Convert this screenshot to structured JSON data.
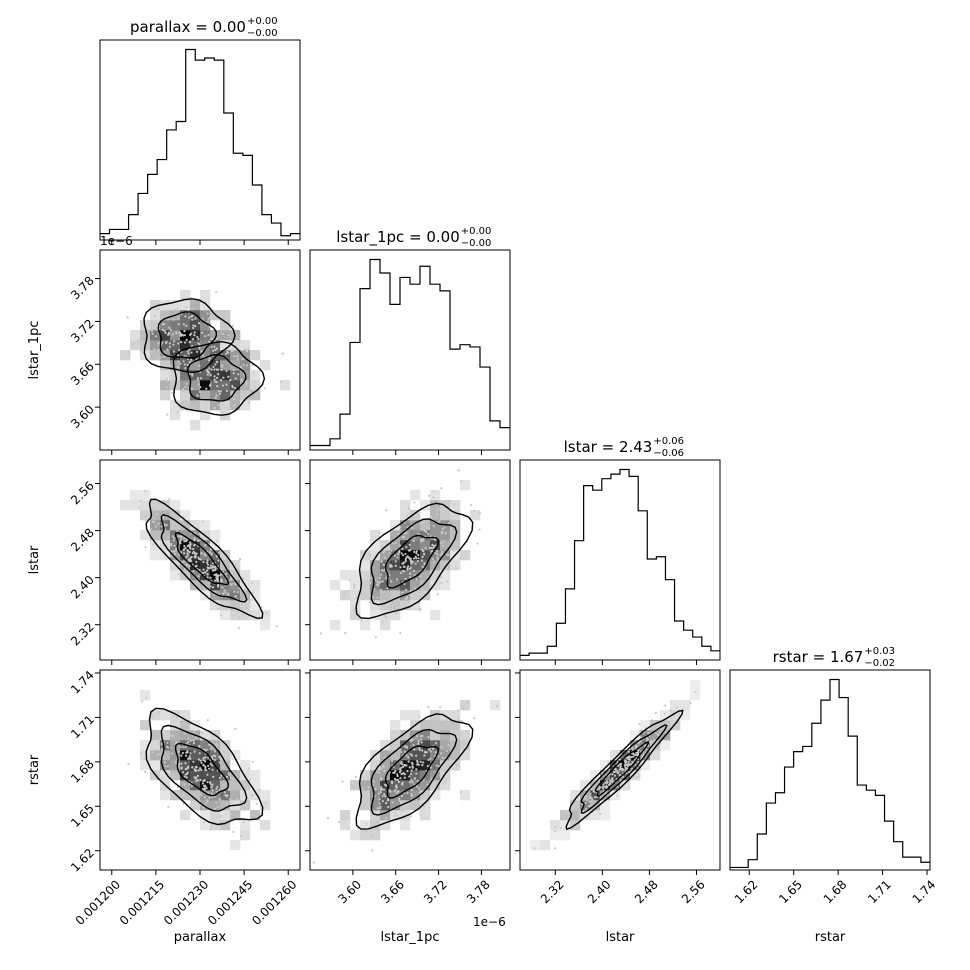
{
  "chart_data": {
    "type": "corner",
    "parameters": [
      "parallax",
      "lstar_1pc",
      "lstar",
      "rstar"
    ],
    "axis_labels": [
      "parallax",
      "lstar_1pc",
      "lstar",
      "rstar"
    ],
    "ranges": [
      [
        0.001196,
        0.001264
      ],
      [
        3.54e-06,
        3.82e-06
      ],
      [
        2.26,
        2.6
      ],
      [
        1.607,
        1.742
      ]
    ],
    "ticks": [
      {
        "values": [
          0.0012,
          0.001215,
          0.00123,
          0.001245,
          0.00126
        ],
        "labels": [
          "0.001200",
          "0.001215",
          "0.001230",
          "0.001245",
          "0.001260"
        ]
      },
      {
        "values": [
          3.6e-06,
          3.66e-06,
          3.72e-06,
          3.78e-06
        ],
        "labels": [
          "3.60",
          "3.66",
          "3.72",
          "3.78"
        ]
      },
      {
        "values": [
          2.32,
          2.4,
          2.48,
          2.56
        ],
        "labels": [
          "2.32",
          "2.40",
          "2.48",
          "2.56"
        ]
      },
      {
        "values": [
          1.62,
          1.65,
          1.68,
          1.71,
          1.74
        ],
        "labels": [
          "1.62",
          "1.65",
          "1.68",
          "1.71",
          "1.74"
        ]
      }
    ],
    "offset_texts": {
      "lstar_1pc_y": "1e−6",
      "lstar_1pc_x": "1e−6"
    },
    "titles": [
      {
        "param": "parallax",
        "text": "parallax = 0.00",
        "plus": "+0.00",
        "minus": "−0.00"
      },
      {
        "param": "lstar_1pc",
        "text": "lstar_1pc = 0.00",
        "plus": "+0.00",
        "minus": "−0.00"
      },
      {
        "param": "lstar",
        "text": "lstar = 2.43",
        "plus": "+0.06",
        "minus": "−0.06"
      },
      {
        "param": "rstar",
        "text": "rstar = 1.67",
        "plus": "+0.03",
        "minus": "−0.02"
      }
    ],
    "histograms": [
      {
        "param": "parallax",
        "counts": [
          3,
          5,
          5,
          12,
          22,
          31,
          38,
          52,
          56,
          90,
          85,
          86,
          85,
          60,
          41,
          40,
          26,
          12,
          8,
          2,
          3
        ]
      },
      {
        "param": "lstar_1pc",
        "counts": [
          2,
          2,
          5,
          16,
          48,
          72,
          85,
          79,
          65,
          77,
          74,
          82,
          74,
          71,
          45,
          47,
          46,
          37,
          13,
          10
        ]
      },
      {
        "param": "lstar",
        "counts": [
          2,
          3,
          3,
          6,
          16,
          31,
          52,
          76,
          74,
          79,
          81,
          83,
          80,
          65,
          44,
          45,
          35,
          17,
          13,
          10,
          6,
          4
        ]
      },
      {
        "param": "rstar",
        "counts": [
          1,
          1,
          4,
          14,
          26,
          30,
          40,
          46,
          48,
          57,
          66,
          74,
          67,
          52,
          33,
          31,
          29,
          19,
          11,
          5,
          5,
          3
        ]
      }
    ],
    "pairs": [
      {
        "x": "parallax",
        "y": "lstar_1pc",
        "correlation": 0.0,
        "blobs": [
          {
            "x": 0.001225,
            "y": 3.7e-06
          },
          {
            "x": 0.001235,
            "y": 3.64e-06
          }
        ]
      },
      {
        "x": "parallax",
        "y": "lstar",
        "correlation": -0.85
      },
      {
        "x": "parallax",
        "y": "rstar",
        "correlation": -0.6
      },
      {
        "x": "lstar_1pc",
        "y": "lstar",
        "correlation": 0.6
      },
      {
        "x": "lstar_1pc",
        "y": "rstar",
        "correlation": 0.65
      },
      {
        "x": "lstar",
        "y": "rstar",
        "correlation": 0.95
      }
    ]
  }
}
